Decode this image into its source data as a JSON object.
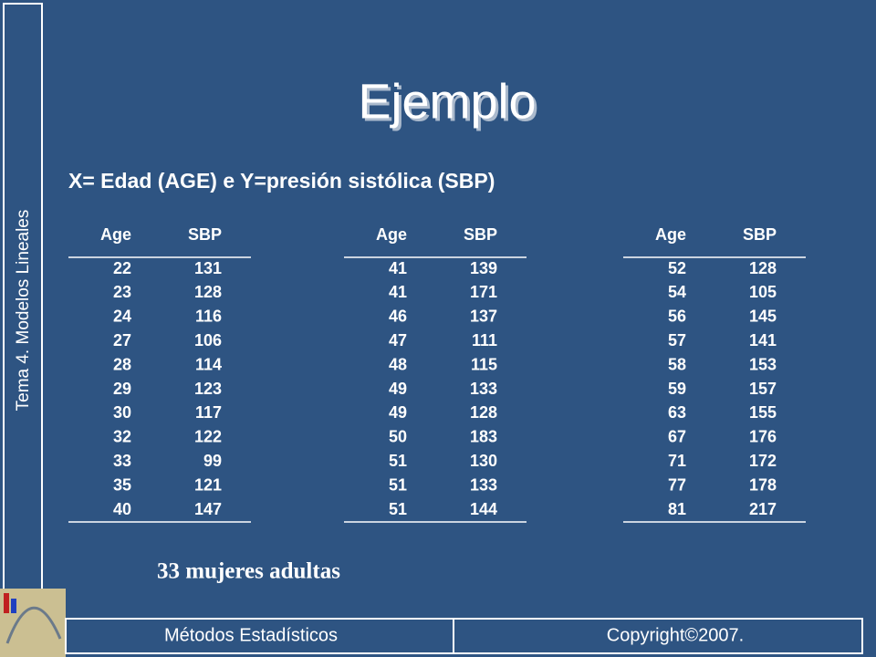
{
  "sidebar": "Tema 4. Modelos Lineales",
  "title": "Ejemplo",
  "subtitle": "X= Edad (AGE) e Y=presión sistólica (SBP)",
  "tables": [
    {
      "header": [
        "Age",
        "SBP"
      ],
      "rows": [
        [
          22,
          131
        ],
        [
          23,
          128
        ],
        [
          24,
          116
        ],
        [
          27,
          106
        ],
        [
          28,
          114
        ],
        [
          29,
          123
        ],
        [
          30,
          117
        ],
        [
          32,
          122
        ],
        [
          33,
          99
        ],
        [
          35,
          121
        ],
        [
          40,
          147
        ]
      ]
    },
    {
      "header": [
        "Age",
        "SBP"
      ],
      "rows": [
        [
          41,
          139
        ],
        [
          41,
          171
        ],
        [
          46,
          137
        ],
        [
          47,
          111
        ],
        [
          48,
          115
        ],
        [
          49,
          133
        ],
        [
          49,
          128
        ],
        [
          50,
          183
        ],
        [
          51,
          130
        ],
        [
          51,
          133
        ],
        [
          51,
          144
        ]
      ]
    },
    {
      "header": [
        "Age",
        "SBP"
      ],
      "rows": [
        [
          52,
          128
        ],
        [
          54,
          105
        ],
        [
          56,
          145
        ],
        [
          57,
          141
        ],
        [
          58,
          153
        ],
        [
          59,
          157
        ],
        [
          63,
          155
        ],
        [
          67,
          176
        ],
        [
          71,
          172
        ],
        [
          77,
          178
        ],
        [
          81,
          217
        ]
      ]
    }
  ],
  "note": "33 mujeres adultas",
  "footer": {
    "left": "Métodos Estadísticos",
    "right": "Copyright©2007."
  }
}
